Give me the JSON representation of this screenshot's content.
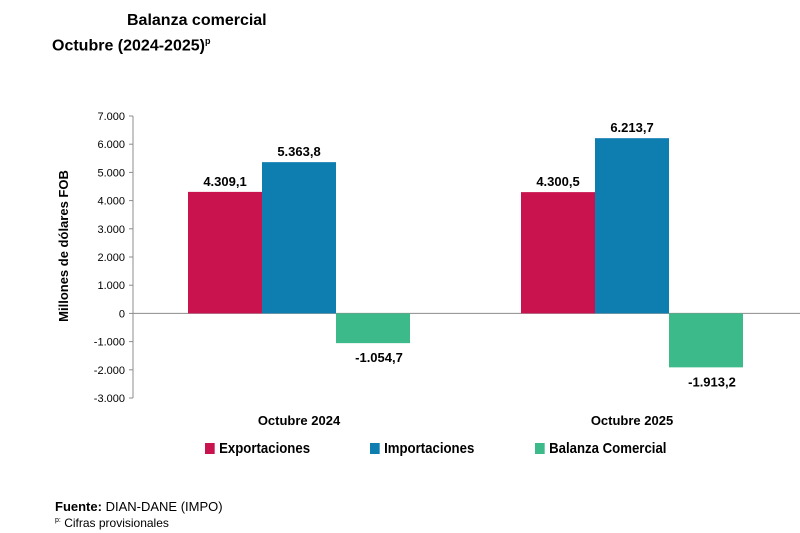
{
  "header": {
    "title": "Balanza comercial",
    "subtitle": "Octubre (2024-2025)",
    "subtitle_mark": "p"
  },
  "footer": {
    "source_label": "Fuente:",
    "source_text": "DIAN-DANE (IMPO)",
    "note_mark": "p:",
    "note_text": "Cifras provisionales"
  },
  "chart_data": {
    "type": "bar",
    "title": "Balanza comercial",
    "subtitle": "Octubre (2024-2025)p",
    "categories": [
      "Octubre 2024",
      "Octubre 2025"
    ],
    "series": [
      {
        "name": "Exportaciones",
        "values": [
          4309.1,
          4300.5
        ],
        "labels": [
          "4.309,1",
          "4.300,5"
        ],
        "color": "#c8134f"
      },
      {
        "name": "Importaciones",
        "values": [
          5363.8,
          6213.7
        ],
        "labels": [
          "5.363,8",
          "6.213,7"
        ],
        "color": "#0e7db0"
      },
      {
        "name": "Balanza Comercial",
        "values": [
          -1054.7,
          -1913.2
        ],
        "labels": [
          "-1.054,7",
          "-1.913,2"
        ],
        "color": "#3cba89"
      }
    ],
    "ylabel": "Millones de dólares FOB",
    "xlabel": "",
    "ylim": [
      -3000,
      7000
    ],
    "yticks": [
      7000,
      6000,
      5000,
      4000,
      3000,
      2000,
      1000,
      0,
      -1000,
      -2000,
      -3000
    ],
    "ytick_labels": [
      "7.000",
      "6.000",
      "5.000",
      "4.000",
      "3.000",
      "2.000",
      "1.000",
      "0",
      "-1.000",
      "-2.000",
      "-3.000"
    ],
    "grid": false,
    "legend": "bottom"
  }
}
